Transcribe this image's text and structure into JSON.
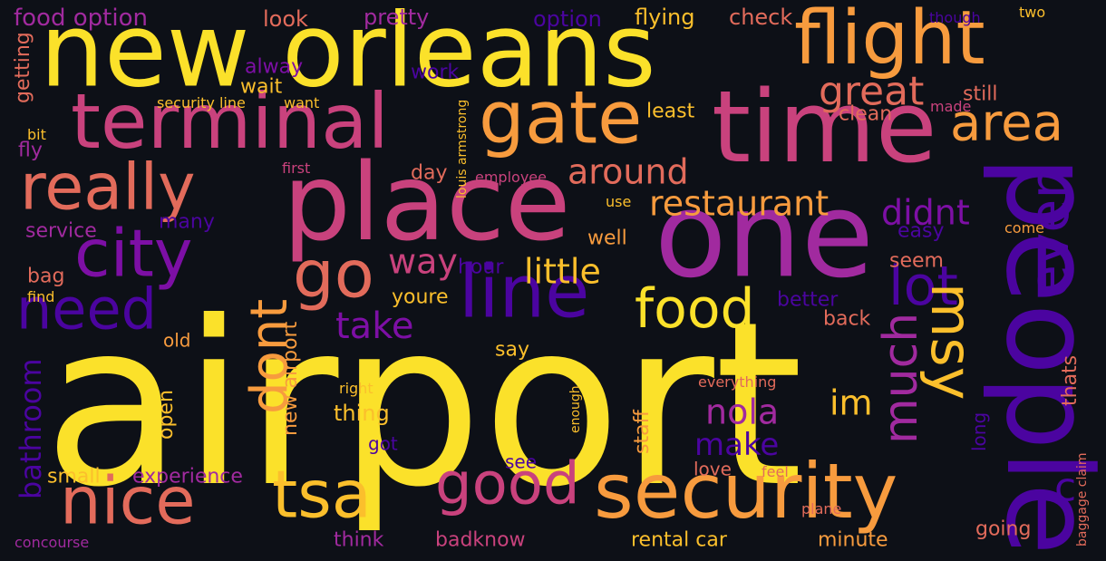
{
  "palette": {
    "background": "#0d1017",
    "yellow": "#fbe12a",
    "gold": "#fbbf2c",
    "orange": "#f79b3e",
    "salmon": "#e26b5b",
    "pink": "#c9427d",
    "magenta": "#a12a9f",
    "purple": "#7d0fa5",
    "indigo": "#4b04a0",
    "deep": "#2f0596"
  },
  "words": [
    {
      "text": "airport",
      "size": 250,
      "color": "yellow",
      "rot": 0
    },
    {
      "text": "new orleans",
      "size": 112,
      "color": "yellow",
      "rot": 0
    },
    {
      "text": "flight",
      "size": 82,
      "color": "orange",
      "rot": 0
    },
    {
      "text": "time",
      "size": 110,
      "color": "pink",
      "rot": 0
    },
    {
      "text": "one",
      "size": 130,
      "color": "magenta",
      "rot": 0
    },
    {
      "text": "people",
      "size": 130,
      "color": "indigo",
      "rot": 90
    },
    {
      "text": "terminal",
      "size": 84,
      "color": "pink",
      "rot": 0
    },
    {
      "text": "gate",
      "size": 80,
      "color": "orange",
      "rot": 0
    },
    {
      "text": "place",
      "size": 118,
      "color": "pink",
      "rot": 0
    },
    {
      "text": "really",
      "size": 70,
      "color": "salmon",
      "rot": 0
    },
    {
      "text": "city",
      "size": 72,
      "color": "purple",
      "rot": 0
    },
    {
      "text": "go",
      "size": 72,
      "color": "salmon",
      "rot": 0
    },
    {
      "text": "need",
      "size": 62,
      "color": "indigo",
      "rot": 0
    },
    {
      "text": "line",
      "size": 80,
      "color": "indigo",
      "rot": 0
    },
    {
      "text": "area",
      "size": 56,
      "color": "orange",
      "rot": 0
    },
    {
      "text": "great",
      "size": 44,
      "color": "salmon",
      "rot": 0
    },
    {
      "text": "even",
      "size": 60,
      "color": "indigo",
      "rot": 270
    },
    {
      "text": "lot",
      "size": 60,
      "color": "indigo",
      "rot": 0
    },
    {
      "text": "msy",
      "size": 62,
      "color": "gold",
      "rot": 90
    },
    {
      "text": "much",
      "size": 52,
      "color": "magenta",
      "rot": 270
    },
    {
      "text": "food",
      "size": 60,
      "color": "yellow",
      "rot": 0
    },
    {
      "text": "dont",
      "size": 56,
      "color": "orange",
      "rot": 270
    },
    {
      "text": "nice",
      "size": 72,
      "color": "salmon",
      "rot": 0
    },
    {
      "text": "tsa",
      "size": 72,
      "color": "gold",
      "rot": 0
    },
    {
      "text": "good",
      "size": 64,
      "color": "pink",
      "rot": 0
    },
    {
      "text": "security",
      "size": 84,
      "color": "orange",
      "rot": 0
    },
    {
      "text": "restaurant",
      "size": 38,
      "color": "orange",
      "rot": 0
    },
    {
      "text": "around",
      "size": 38,
      "color": "salmon",
      "rot": 0
    },
    {
      "text": "didnt",
      "size": 38,
      "color": "purple",
      "rot": 0
    },
    {
      "text": "little",
      "size": 38,
      "color": "gold",
      "rot": 0
    },
    {
      "text": "way",
      "size": 38,
      "color": "pink",
      "rot": 0
    },
    {
      "text": "take",
      "size": 40,
      "color": "purple",
      "rot": 0
    },
    {
      "text": "nola",
      "size": 38,
      "color": "magenta",
      "rot": 0
    },
    {
      "text": "im",
      "size": 38,
      "color": "gold",
      "rot": 0
    },
    {
      "text": "make",
      "size": 34,
      "color": "indigo",
      "rot": 0
    },
    {
      "text": "bathroom",
      "size": 32,
      "color": "indigo",
      "rot": 270
    },
    {
      "text": "experience",
      "size": 22,
      "color": "magenta",
      "rot": 0
    },
    {
      "text": "small",
      "size": 22,
      "color": "gold",
      "rot": 0
    },
    {
      "text": "new airport",
      "size": 22,
      "color": "orange",
      "rot": 270
    },
    {
      "text": "thing",
      "size": 24,
      "color": "gold",
      "rot": 0
    },
    {
      "text": "youre",
      "size": 22,
      "color": "gold",
      "rot": 0
    },
    {
      "text": "say",
      "size": 22,
      "color": "gold",
      "rot": 0
    },
    {
      "text": "open",
      "size": 22,
      "color": "gold",
      "rot": 270
    },
    {
      "text": "old",
      "size": 20,
      "color": "orange",
      "rot": 0
    },
    {
      "text": "staff",
      "size": 22,
      "color": "orange",
      "rot": 270
    },
    {
      "text": "got",
      "size": 20,
      "color": "indigo",
      "rot": 0
    },
    {
      "text": "see",
      "size": 20,
      "color": "indigo",
      "rot": 0
    },
    {
      "text": "love",
      "size": 20,
      "color": "salmon",
      "rot": 0
    },
    {
      "text": "feel",
      "size": 16,
      "color": "salmon",
      "rot": 0
    },
    {
      "text": "think",
      "size": 22,
      "color": "magenta",
      "rot": 0
    },
    {
      "text": "badknow",
      "size": 22,
      "color": "pink",
      "rot": 0
    },
    {
      "text": "rental car",
      "size": 22,
      "color": "gold",
      "rot": 0
    },
    {
      "text": "minute",
      "size": 22,
      "color": "orange",
      "rot": 0
    },
    {
      "text": "going",
      "size": 22,
      "color": "salmon",
      "rot": 0
    },
    {
      "text": "concourse",
      "size": 16,
      "color": "magenta",
      "rot": 0
    },
    {
      "text": "plane",
      "size": 16,
      "color": "salmon",
      "rot": 0
    },
    {
      "text": "baggage claim",
      "size": 14,
      "color": "salmon",
      "rot": 270
    },
    {
      "text": "c",
      "size": 44,
      "color": "indigo",
      "rot": 0
    },
    {
      "text": "long",
      "size": 20,
      "color": "indigo",
      "rot": 270
    },
    {
      "text": "thats",
      "size": 22,
      "color": "salmon",
      "rot": 270
    },
    {
      "text": "right",
      "size": 16,
      "color": "gold",
      "rot": 0
    },
    {
      "text": "everything",
      "size": 16,
      "color": "salmon",
      "rot": 0
    },
    {
      "text": "enough",
      "size": 14,
      "color": "gold",
      "rot": 270
    },
    {
      "text": "back",
      "size": 22,
      "color": "salmon",
      "rot": 0
    },
    {
      "text": "better",
      "size": 22,
      "color": "indigo",
      "rot": 0
    },
    {
      "text": "seem",
      "size": 22,
      "color": "salmon",
      "rot": 0
    },
    {
      "text": "easy",
      "size": 22,
      "color": "indigo",
      "rot": 0
    },
    {
      "text": "come",
      "size": 16,
      "color": "orange",
      "rot": 0
    },
    {
      "text": "well",
      "size": 22,
      "color": "orange",
      "rot": 0
    },
    {
      "text": "use",
      "size": 16,
      "color": "gold",
      "rot": 0
    },
    {
      "text": "hour",
      "size": 22,
      "color": "indigo",
      "rot": 0
    },
    {
      "text": "day",
      "size": 22,
      "color": "salmon",
      "rot": 0
    },
    {
      "text": "many",
      "size": 22,
      "color": "indigo",
      "rot": 0
    },
    {
      "text": "service",
      "size": 22,
      "color": "magenta",
      "rot": 0
    },
    {
      "text": "bag",
      "size": 22,
      "color": "salmon",
      "rot": 0
    },
    {
      "text": "find",
      "size": 16,
      "color": "gold",
      "rot": 0
    },
    {
      "text": "fly",
      "size": 22,
      "color": "magenta",
      "rot": 0
    },
    {
      "text": "bit",
      "size": 16,
      "color": "gold",
      "rot": 0
    },
    {
      "text": "first",
      "size": 16,
      "color": "pink",
      "rot": 0
    },
    {
      "text": "employee",
      "size": 16,
      "color": "pink",
      "rot": 0
    },
    {
      "text": "louis armstrong",
      "size": 14,
      "color": "gold",
      "rot": 270
    },
    {
      "text": "security line",
      "size": 16,
      "color": "gold",
      "rot": 0
    },
    {
      "text": "want",
      "size": 16,
      "color": "gold",
      "rot": 0
    },
    {
      "text": "getting",
      "size": 22,
      "color": "salmon",
      "rot": 270
    },
    {
      "text": "food option",
      "size": 26,
      "color": "magenta",
      "rot": 0
    },
    {
      "text": "look",
      "size": 24,
      "color": "salmon",
      "rot": 0
    },
    {
      "text": "pretty",
      "size": 24,
      "color": "magenta",
      "rot": 0
    },
    {
      "text": "option",
      "size": 24,
      "color": "indigo",
      "rot": 0
    },
    {
      "text": "flying",
      "size": 24,
      "color": "gold",
      "rot": 0
    },
    {
      "text": "check",
      "size": 24,
      "color": "salmon",
      "rot": 0
    },
    {
      "text": "alway",
      "size": 22,
      "color": "purple",
      "rot": 0
    },
    {
      "text": "wait",
      "size": 22,
      "color": "gold",
      "rot": 0
    },
    {
      "text": "work",
      "size": 22,
      "color": "indigo",
      "rot": 0
    },
    {
      "text": "least",
      "size": 22,
      "color": "gold",
      "rot": 0
    },
    {
      "text": "clean",
      "size": 22,
      "color": "salmon",
      "rot": 0
    },
    {
      "text": "still",
      "size": 22,
      "color": "salmon",
      "rot": 0
    },
    {
      "text": "made",
      "size": 16,
      "color": "pink",
      "rot": 0
    },
    {
      "text": "though",
      "size": 16,
      "color": "indigo",
      "rot": 0
    },
    {
      "text": "two",
      "size": 16,
      "color": "gold",
      "rot": 0
    }
  ]
}
